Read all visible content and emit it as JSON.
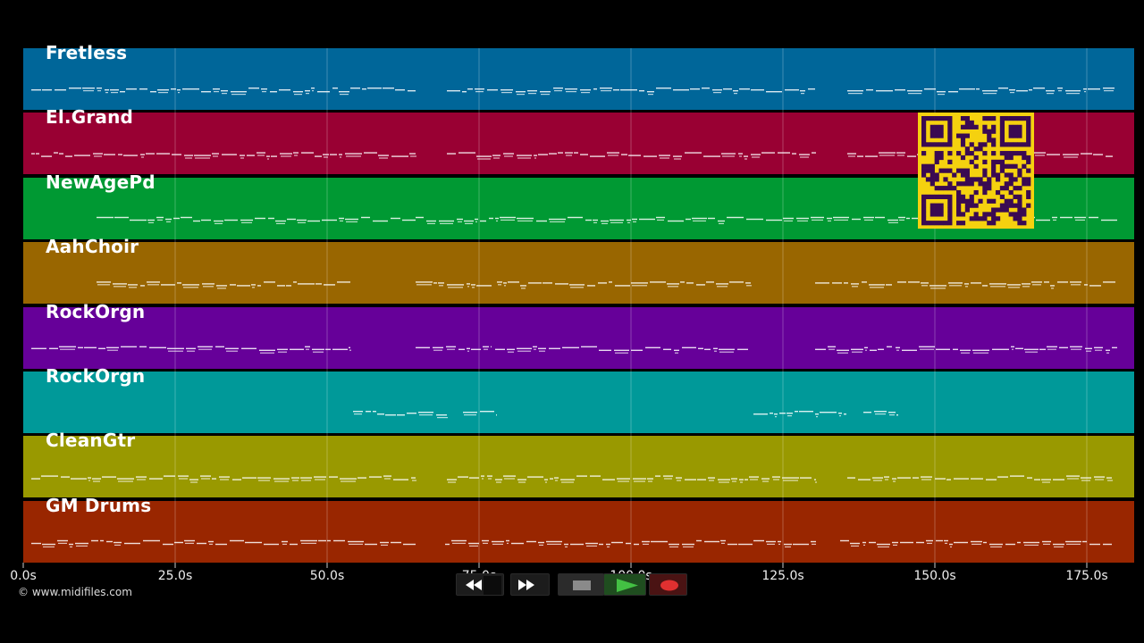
{
  "tracks": [
    {
      "name": "Fretless",
      "color": "#006699"
    },
    {
      "name": "El.Grand",
      "color": "#990033"
    },
    {
      "name": "NewAgePd",
      "color": "#009933"
    },
    {
      "name": "AahChoir",
      "color": "#996600"
    },
    {
      "name": "RockOrgn",
      "color": "#660099"
    },
    {
      "name": "RockOrgn",
      "color": "#009999"
    },
    {
      "name": "CleanGtr",
      "color": "#999900"
    },
    {
      "name": "GM Drums",
      "color": "#992600"
    }
  ],
  "timeline": {
    "ticks": [
      "0.0s",
      "25.0s",
      "50.0s",
      "75.0s",
      "100.0s",
      "125.0s",
      "150.0s",
      "175.0s"
    ]
  },
  "transport": {
    "buttons": [
      "rewind",
      "fast-forward",
      "stop",
      "play",
      "record"
    ]
  },
  "copyright": "© www.midifiles.com",
  "qr": {
    "color_fg": "#3a0a52",
    "color_bg": "#f5d10f"
  }
}
